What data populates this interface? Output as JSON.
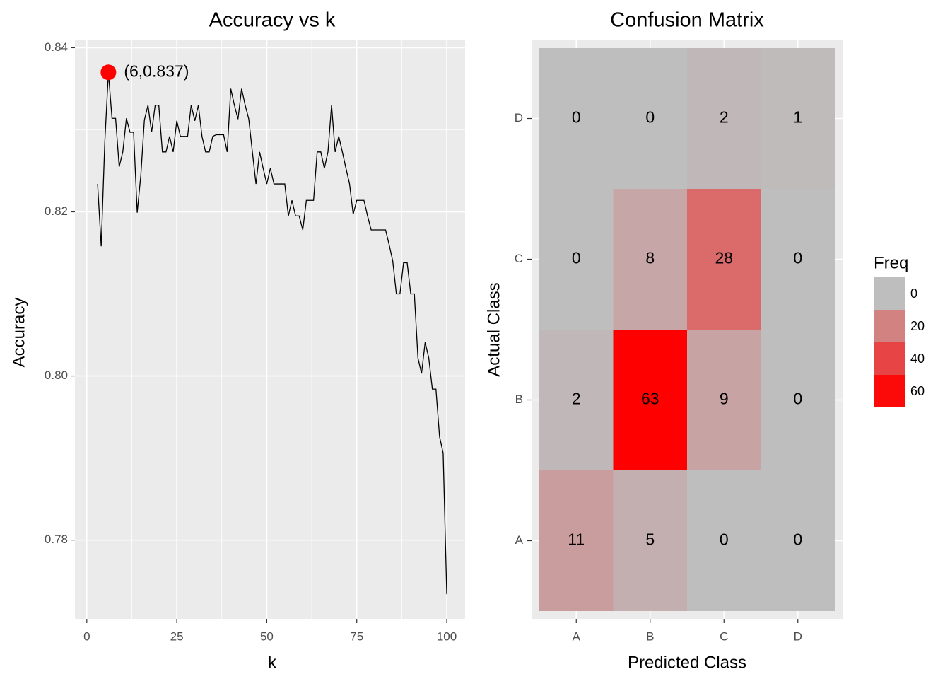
{
  "chart_data": [
    {
      "type": "line",
      "title": "Accuracy vs k",
      "x_label": "k",
      "y_label": "Accuracy",
      "color": "#000000",
      "x": [
        3,
        4,
        5,
        6,
        7,
        8,
        9,
        10,
        11,
        12,
        13,
        14,
        15,
        16,
        17,
        18,
        19,
        20,
        21,
        22,
        23,
        24,
        25,
        26,
        27,
        28,
        29,
        30,
        31,
        32,
        33,
        34,
        35,
        36,
        37,
        38,
        39,
        40,
        41,
        42,
        43,
        44,
        45,
        46,
        47,
        48,
        49,
        50,
        51,
        52,
        53,
        54,
        55,
        56,
        57,
        58,
        59,
        60,
        61,
        62,
        63,
        64,
        65,
        66,
        67,
        68,
        69,
        70,
        71,
        72,
        73,
        74,
        75,
        76,
        77,
        78,
        79,
        80,
        81,
        82,
        83,
        84,
        85,
        86,
        87,
        88,
        89,
        90,
        91,
        92,
        93,
        94,
        95,
        96,
        97,
        98,
        99,
        100
      ],
      "values": [
        0.8234,
        0.8158,
        0.8285,
        0.837,
        0.8314,
        0.8314,
        0.8255,
        0.8273,
        0.8314,
        0.8297,
        0.8297,
        0.8199,
        0.8244,
        0.8312,
        0.833,
        0.8297,
        0.833,
        0.833,
        0.8273,
        0.8273,
        0.8292,
        0.8273,
        0.8311,
        0.8292,
        0.8292,
        0.8292,
        0.833,
        0.8311,
        0.833,
        0.8292,
        0.8273,
        0.8273,
        0.8292,
        0.8294,
        0.8294,
        0.8294,
        0.8273,
        0.835,
        0.833,
        0.8313,
        0.835,
        0.833,
        0.8313,
        0.8273,
        0.8234,
        0.8273,
        0.8253,
        0.8234,
        0.8253,
        0.8234,
        0.8234,
        0.8234,
        0.8234,
        0.8195,
        0.8214,
        0.8195,
        0.8195,
        0.8178,
        0.8214,
        0.8214,
        0.8214,
        0.8273,
        0.8273,
        0.8253,
        0.8273,
        0.833,
        0.8273,
        0.8292,
        0.8273,
        0.8253,
        0.8234,
        0.8197,
        0.8214,
        0.8214,
        0.8214,
        0.8195,
        0.8178,
        0.8178,
        0.8178,
        0.8178,
        0.8178,
        0.816,
        0.814,
        0.81,
        0.81,
        0.8138,
        0.8138,
        0.81,
        0.81,
        0.8022,
        0.8003,
        0.8041,
        0.8022,
        0.7984,
        0.7984,
        0.7926,
        0.7906,
        0.7734
      ],
      "highlight": {
        "x": 6,
        "y": 0.837,
        "label": "(6,0.837)",
        "color": "#ff0000"
      },
      "xlim": [
        -3.3,
        105.1
      ],
      "ylim": [
        0.7704,
        0.8409
      ],
      "xticks": [
        0,
        25,
        50,
        75,
        100
      ],
      "yticks": [
        0.78,
        {
          "value": 0.8,
          "label": "0.80"
        },
        0.82,
        0.84
      ],
      "grid": true
    },
    {
      "type": "heatmap",
      "title": "Confusion Matrix",
      "x_label": "Predicted Class",
      "y_label": "Actual Class",
      "x_categories": [
        "A",
        "B",
        "C",
        "D"
      ],
      "y_categories": [
        "A",
        "B",
        "C",
        "D"
      ],
      "values": [
        [
          11,
          5,
          0,
          0
        ],
        [
          2,
          63,
          9,
          0
        ],
        [
          0,
          8,
          28,
          0
        ],
        [
          0,
          0,
          2,
          1
        ]
      ],
      "low_color": "#bebebe",
      "high_color": "#ff0000",
      "legend_title": "Freq",
      "legend_ticks": [
        0,
        20,
        40,
        60
      ]
    }
  ]
}
